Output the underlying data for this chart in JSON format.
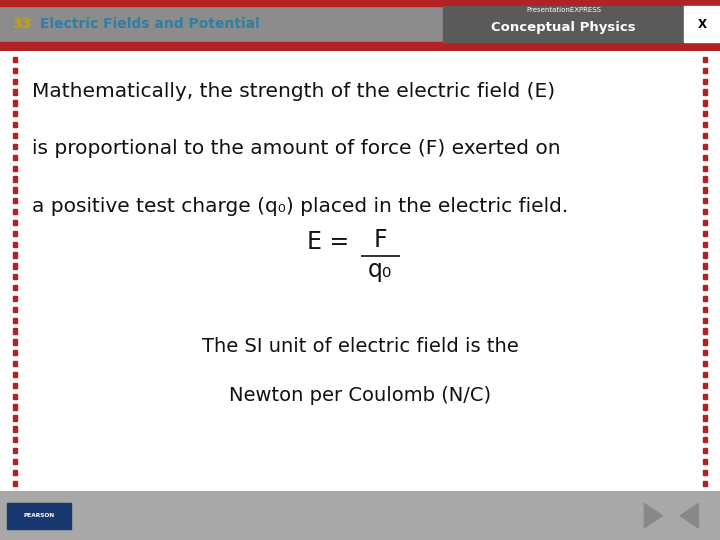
{
  "slide_number": "33",
  "title": "Electric Fields and Potential",
  "title_color": "#2E7EA6",
  "slide_number_color": "#C8A000",
  "header_bg": "#8C8C8C",
  "header_red_color": "#B22222",
  "content_bg": "#FFFFFF",
  "footer_bg": "#A8A8A8",
  "right_header_bg": "#5A5A5A",
  "conceptual_physics_text": "Conceptual Physics",
  "presentation_express_text": "PresentationEXPRESS",
  "body_line1": "Mathematically, the strength of the electric field (E)",
  "body_line2": "is proportional to the amount of force (F) exerted on",
  "body_line3": "a positive test charge (q₀) placed in the electric field.",
  "si_line1": "The SI unit of electric field is the",
  "si_line2": "Newton per Coulomb (N/C)",
  "dashed_color": "#B22222",
  "text_color": "#111111",
  "body_font_size": 14.5,
  "formula_font_size": 17,
  "si_font_size": 14,
  "header_title_font_size": 10,
  "figsize": [
    7.2,
    5.4
  ],
  "dpi": 100
}
